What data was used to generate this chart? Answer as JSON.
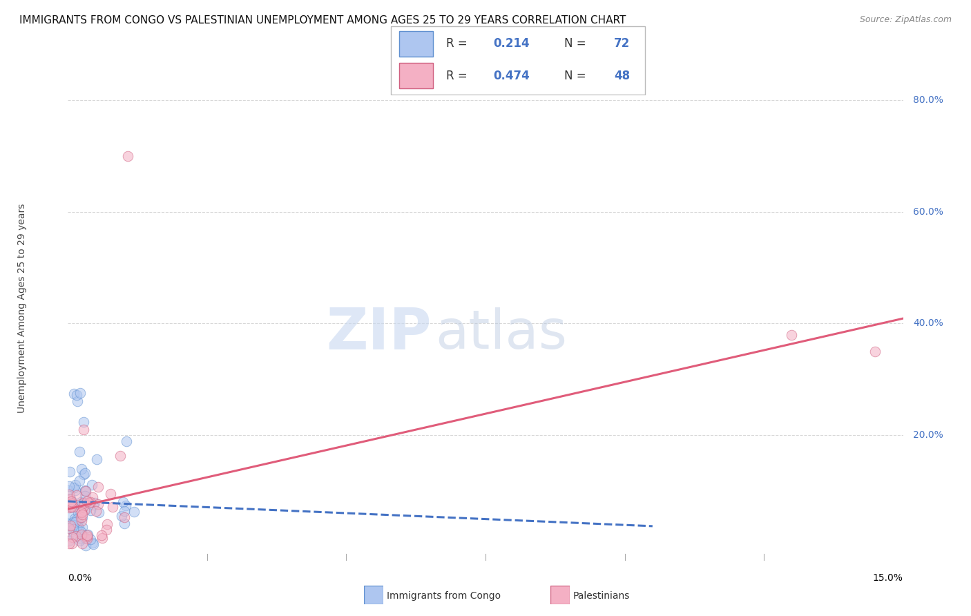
{
  "title": "IMMIGRANTS FROM CONGO VS PALESTINIAN UNEMPLOYMENT AMONG AGES 25 TO 29 YEARS CORRELATION CHART",
  "source": "Source: ZipAtlas.com",
  "ylabel": "Unemployment Among Ages 25 to 29 years",
  "ytick_labels": [
    "20.0%",
    "40.0%",
    "60.0%",
    "80.0%"
  ],
  "ytick_values": [
    0.2,
    0.4,
    0.6,
    0.8
  ],
  "xlim": [
    0,
    0.15
  ],
  "ylim": [
    -0.025,
    0.88
  ],
  "legend_R1": "0.214",
  "legend_N1": "72",
  "legend_R2": "0.474",
  "legend_N2": "48",
  "label1": "Immigrants from Congo",
  "label2": "Palestinians",
  "scatter_size": 110,
  "scatter_alpha": 0.55,
  "congo_color": "#aec6f0",
  "congo_edge": "#6090d0",
  "palest_color": "#f4b0c4",
  "palest_edge": "#d06080",
  "congo_line_color": "#4472C4",
  "palest_line_color": "#e05c7a",
  "grid_color": "#d8d8d8",
  "title_fontsize": 11,
  "axis_label_fontsize": 10,
  "tick_fontsize": 10,
  "legend_fontsize": 12
}
